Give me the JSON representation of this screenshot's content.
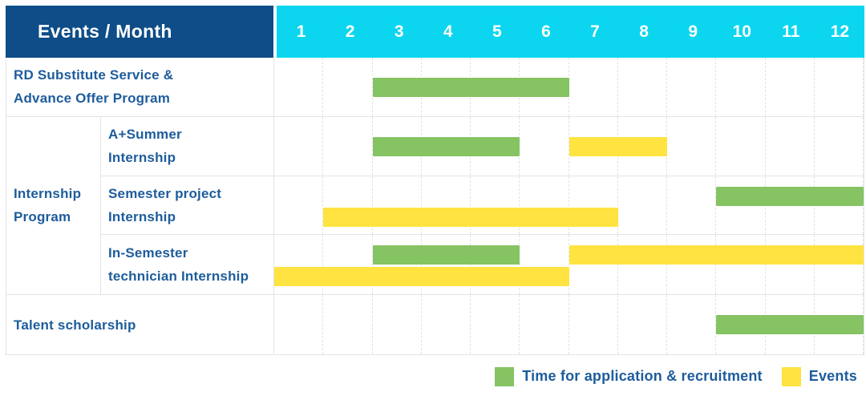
{
  "header": {
    "title": "Events / Month",
    "months": [
      "1",
      "2",
      "3",
      "4",
      "5",
      "6",
      "7",
      "8",
      "9",
      "10",
      "11",
      "12"
    ]
  },
  "colors": {
    "header_bg": "#0E4D87",
    "months_bg": "#0CD6EF",
    "green": "#86C363",
    "yellow": "#FFE340",
    "label_text": "#1D5C9C"
  },
  "legend": [
    {
      "series": "green",
      "label": "Time for application & recruitment"
    },
    {
      "series": "yellow",
      "label": "Events"
    }
  ],
  "chart_data": {
    "type": "bar",
    "subtype": "gantt-timeline",
    "title": "Events / Month",
    "x_axis": {
      "label": "Month",
      "ticks": [
        1,
        2,
        3,
        4,
        5,
        6,
        7,
        8,
        9,
        10,
        11,
        12
      ],
      "range": [
        1,
        12
      ]
    },
    "legend_position": "bottom-right",
    "series_colors": {
      "green": "#86C363",
      "yellow": "#FFE340"
    },
    "rows": [
      {
        "group": "",
        "label": "RD Substitute Service & Advance Offer Program",
        "label_lines": [
          "RD Substitute Service &",
          "Advance Offer Program"
        ],
        "bars": [
          {
            "series": "green",
            "start_month": 3,
            "end_month": 6,
            "line": "center"
          }
        ]
      },
      {
        "group": "Internship Program",
        "label": "A+Summer Internship",
        "label_lines": [
          "A+Summer",
          "Internship"
        ],
        "bars": [
          {
            "series": "green",
            "start_month": 3,
            "end_month": 5,
            "line": "center"
          },
          {
            "series": "yellow",
            "start_month": 7,
            "end_month": 8,
            "line": "center"
          }
        ]
      },
      {
        "group": "Internship Program",
        "label": "Semester project Internship",
        "label_lines": [
          "Semester project",
          "Internship"
        ],
        "bars": [
          {
            "series": "green",
            "start_month": 10,
            "end_month": 12,
            "line": "top"
          },
          {
            "series": "yellow",
            "start_month": 2,
            "end_month": 7,
            "line": "bottom"
          }
        ]
      },
      {
        "group": "Internship Program",
        "label": "In-Semester technician Internship",
        "label_lines": [
          "In-Semester",
          "technician Internship"
        ],
        "bars": [
          {
            "series": "green",
            "start_month": 3,
            "end_month": 5,
            "line": "top"
          },
          {
            "series": "yellow",
            "start_month": 7,
            "end_month": 12,
            "line": "top"
          },
          {
            "series": "yellow",
            "start_month": 1,
            "end_month": 6,
            "line": "bottom"
          }
        ]
      },
      {
        "group": "",
        "label": "Talent scholarship",
        "label_lines": [
          "Talent scholarship"
        ],
        "bars": [
          {
            "series": "green",
            "start_month": 10,
            "end_month": 12,
            "line": "center"
          }
        ]
      }
    ],
    "group_label_lines": {
      "Internship Program": [
        "Internship",
        "Program"
      ]
    }
  }
}
